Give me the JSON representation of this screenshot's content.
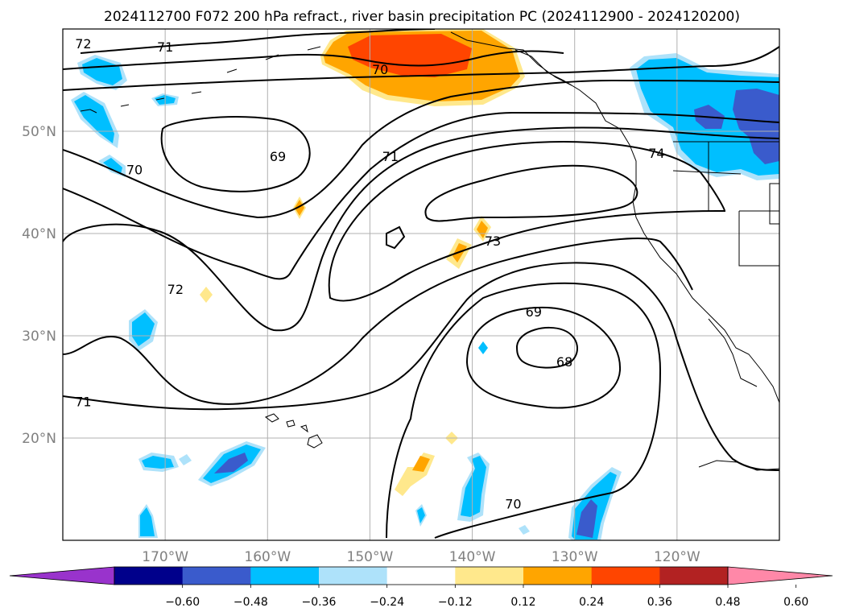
{
  "chart_data": {
    "type": "contour-map",
    "title": "2024112700 F072 200 hPa refract., river basin precipitation PC (2024112900 - 2024120200)",
    "projection": "lat-lon",
    "lon_range": [
      -180,
      -110
    ],
    "lat_range": [
      10,
      60
    ],
    "grid": true,
    "lon_ticks": [
      {
        "lon": -170,
        "label": "170°W"
      },
      {
        "lon": -160,
        "label": "160°W"
      },
      {
        "lon": -150,
        "label": "150°W"
      },
      {
        "lon": -140,
        "label": "140°W"
      },
      {
        "lon": -130,
        "label": "130°W"
      },
      {
        "lon": -120,
        "label": "120°W"
      }
    ],
    "lat_ticks": [
      {
        "lat": 20,
        "label": "20°N"
      },
      {
        "lat": 30,
        "label": "30°N"
      },
      {
        "lat": 40,
        "label": "40°N"
      },
      {
        "lat": 50,
        "label": "50°N"
      }
    ],
    "contour_labels": [
      {
        "text": "72",
        "lon": -178,
        "lat": 58.5
      },
      {
        "text": "71",
        "lon": -170,
        "lat": 58.2
      },
      {
        "text": "70",
        "lon": -149,
        "lat": 56
      },
      {
        "text": "69",
        "lon": -159,
        "lat": 47.5
      },
      {
        "text": "70",
        "lon": -173,
        "lat": 46.2
      },
      {
        "text": "71",
        "lon": -148,
        "lat": 47.5
      },
      {
        "text": "74",
        "lon": -122,
        "lat": 47.8
      },
      {
        "text": "73",
        "lon": -138,
        "lat": 39.2
      },
      {
        "text": "72",
        "lon": -169,
        "lat": 34.5
      },
      {
        "text": "69",
        "lon": -134,
        "lat": 32.3
      },
      {
        "text": "68",
        "lon": -131,
        "lat": 27.4
      },
      {
        "text": "71",
        "lon": -178,
        "lat": 23.5
      },
      {
        "text": "70",
        "lon": -136,
        "lat": 13.5
      }
    ],
    "colorbar": {
      "extend": "both",
      "bins": [
        {
          "color": "#9933cc"
        },
        {
          "color": "#00008b"
        },
        {
          "color": "#3a5bcc"
        },
        {
          "color": "#00bfff"
        },
        {
          "color": "#aee2fa"
        },
        {
          "color": "#ffffff"
        },
        {
          "color": "#ffe88c"
        },
        {
          "color": "#ffa500"
        },
        {
          "color": "#ff4500"
        },
        {
          "color": "#b22222"
        },
        {
          "color": "#ff88a8"
        }
      ],
      "ticks": [
        "−0.60",
        "−0.48",
        "−0.36",
        "−0.24",
        "−0.12",
        "0.12",
        "0.24",
        "0.36",
        "0.48",
        "0.60"
      ]
    },
    "colors": {
      "grid": "#b0b0b0",
      "contour": "#000000",
      "coast": "#000000",
      "tick_text": "#808080"
    }
  }
}
